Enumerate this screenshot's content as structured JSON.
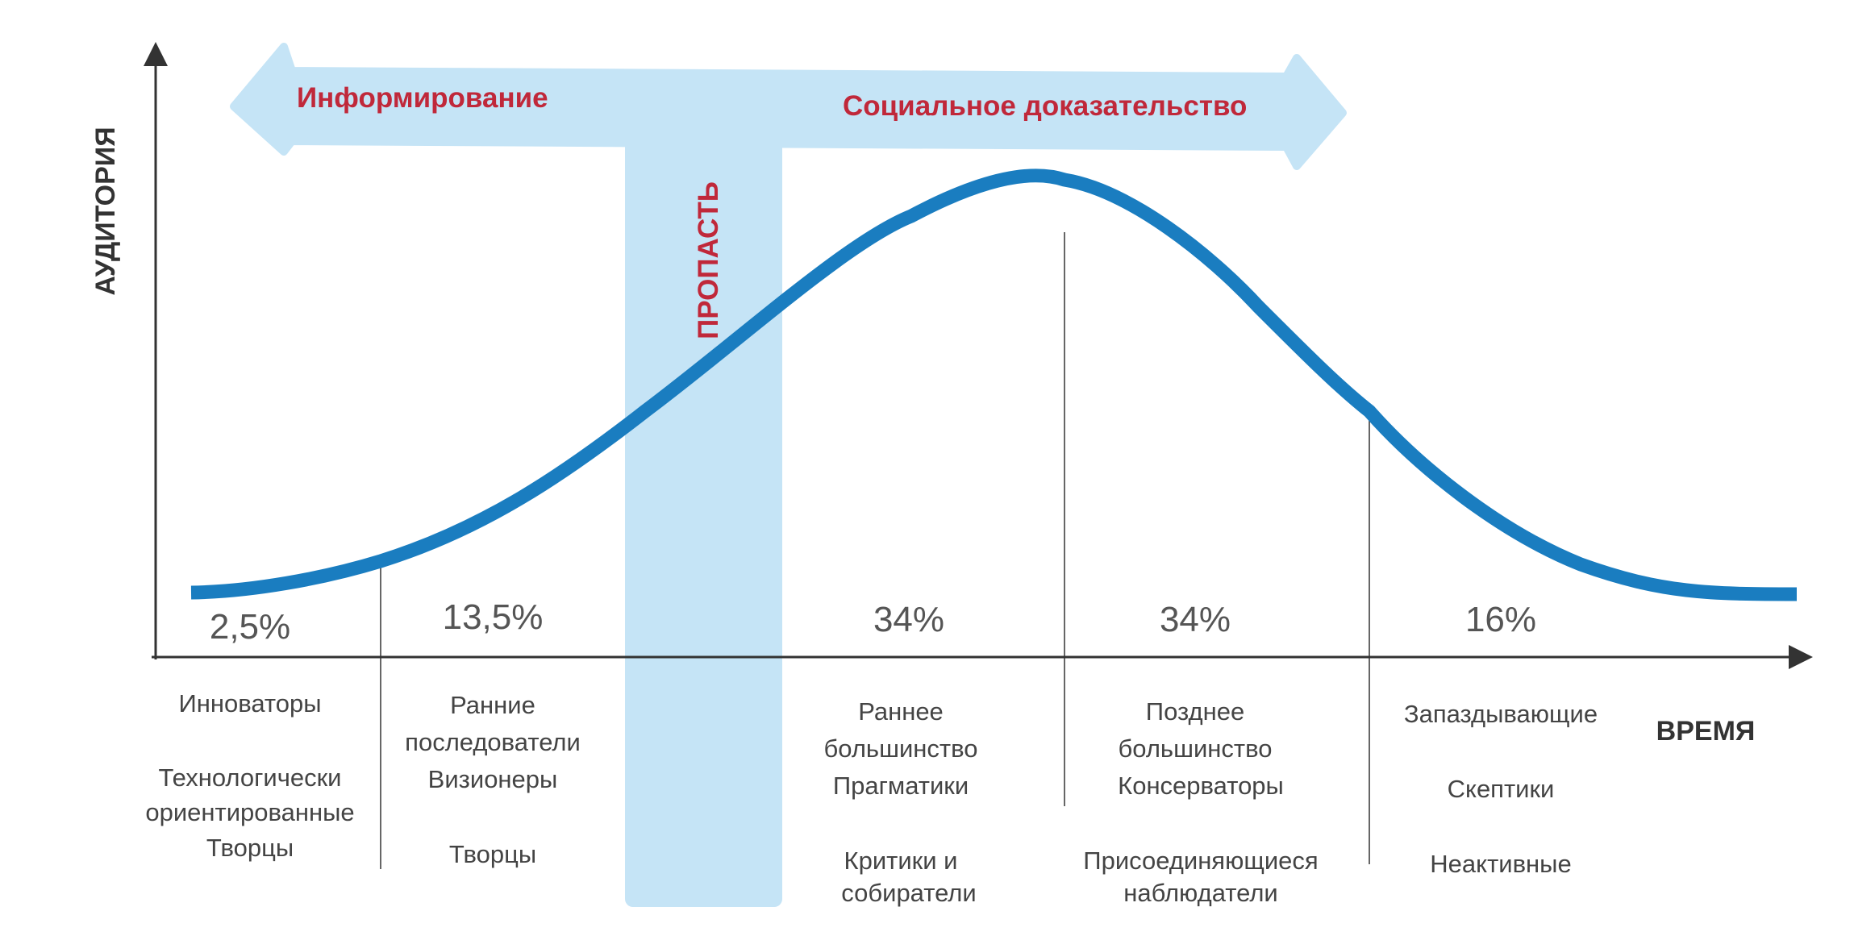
{
  "axes": {
    "y_label": "АУДИТОРИЯ",
    "x_label": "ВРЕМЯ"
  },
  "banner": {
    "left_label": "Информирование",
    "right_label": "Социальное доказательство",
    "chasm_label": "ПРОПАСТЬ"
  },
  "segments": [
    {
      "percent": "2,5%",
      "lines": [
        "Инноваторы",
        "",
        "Технологически",
        "ориентированные",
        "Творцы"
      ]
    },
    {
      "percent": "13,5%",
      "lines": [
        "Ранние",
        "последователи",
        "Визионеры",
        "",
        "Творцы"
      ]
    },
    {
      "percent": "34%",
      "lines": [
        "Раннее",
        "большинство",
        "Прагматики",
        "",
        "Критики и",
        "собиратели"
      ]
    },
    {
      "percent": "34%",
      "lines": [
        "Позднее",
        "большинство",
        "Консерваторы",
        "",
        "Присоединяющиеся",
        "наблюдатели"
      ]
    },
    {
      "percent": "16%",
      "lines": [
        "Запаздывающие",
        "",
        "Скептики",
        "",
        "Неактивные"
      ]
    }
  ],
  "colors": {
    "curve": "#1a7dc0",
    "banner": "#c5e4f6",
    "accent_text": "#c0283a",
    "axis": "#333333",
    "label_text": "#444444"
  }
}
